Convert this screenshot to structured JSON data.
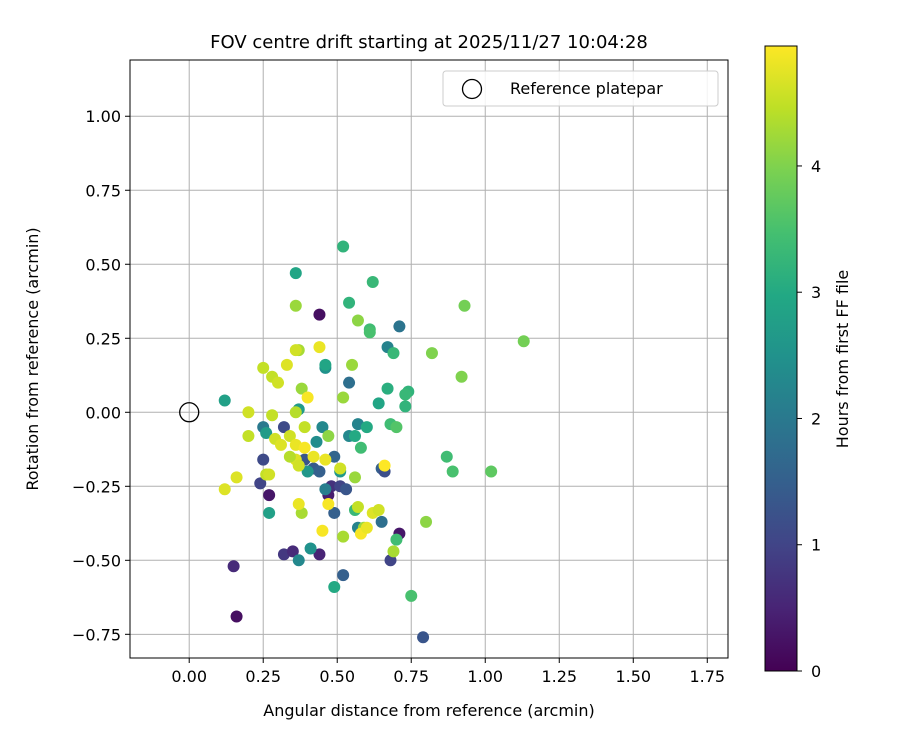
{
  "chart_data": {
    "type": "scatter",
    "title": "FOV centre drift starting at 2025/11/27 10:04:28",
    "xlabel": "Angular distance from reference (arcmin)",
    "ylabel": "Rotation from reference (arcmin)",
    "xlim": [
      -0.2,
      1.82
    ],
    "ylim": [
      -0.83,
      1.19
    ],
    "xticks": [
      0.0,
      0.25,
      0.5,
      0.75,
      1.0,
      1.25,
      1.5,
      1.75
    ],
    "xtick_labels": [
      "0.00",
      "0.25",
      "0.50",
      "0.75",
      "1.00",
      "1.25",
      "1.50",
      "1.75"
    ],
    "yticks": [
      -0.75,
      -0.5,
      -0.25,
      0.0,
      0.25,
      0.5,
      0.75,
      1.0
    ],
    "ytick_labels": [
      "−0.75",
      "−0.50",
      "−0.25",
      "0.00",
      "0.25",
      "0.50",
      "0.75",
      "1.00"
    ],
    "grid": true,
    "legend": {
      "placement": "top-right",
      "entries": [
        "Reference platepar"
      ]
    },
    "reference_point": {
      "x": 0.0,
      "y": 0.0
    },
    "colorbar": {
      "label": "Hours from first FF file",
      "colormap": "viridis",
      "range": [
        0,
        4.95
      ],
      "ticks": [
        0,
        1,
        2,
        3,
        4
      ],
      "tick_labels": [
        "0",
        "1",
        "2",
        "3",
        "4"
      ]
    },
    "points": [
      {
        "x": 0.44,
        "y": 0.33,
        "t": 0.2
      },
      {
        "x": 0.16,
        "y": -0.69,
        "t": 0.2
      },
      {
        "x": 0.15,
        "y": -0.52,
        "t": 0.6
      },
      {
        "x": 0.27,
        "y": -0.28,
        "t": 0.3
      },
      {
        "x": 0.24,
        "y": -0.24,
        "t": 1.0
      },
      {
        "x": 0.25,
        "y": -0.16,
        "t": 1.1
      },
      {
        "x": 0.32,
        "y": -0.48,
        "t": 0.8
      },
      {
        "x": 0.35,
        "y": -0.47,
        "t": 0.6
      },
      {
        "x": 0.44,
        "y": -0.48,
        "t": 0.5
      },
      {
        "x": 0.32,
        "y": -0.05,
        "t": 1.1
      },
      {
        "x": 0.48,
        "y": -0.25,
        "t": 0.7
      },
      {
        "x": 0.51,
        "y": -0.25,
        "t": 1.0
      },
      {
        "x": 0.53,
        "y": -0.26,
        "t": 1.3
      },
      {
        "x": 0.47,
        "y": -0.28,
        "t": 0.4
      },
      {
        "x": 0.42,
        "y": -0.19,
        "t": 1.4
      },
      {
        "x": 0.39,
        "y": -0.16,
        "t": 1.3
      },
      {
        "x": 0.44,
        "y": -0.2,
        "t": 1.5
      },
      {
        "x": 0.49,
        "y": -0.15,
        "t": 1.6
      },
      {
        "x": 0.71,
        "y": -0.41,
        "t": 0.3
      },
      {
        "x": 0.68,
        "y": -0.5,
        "t": 1.0
      },
      {
        "x": 0.79,
        "y": -0.76,
        "t": 1.3
      },
      {
        "x": 0.52,
        "y": -0.55,
        "t": 1.5
      },
      {
        "x": 0.49,
        "y": -0.34,
        "t": 1.5
      },
      {
        "x": 0.65,
        "y": -0.19,
        "t": 1.5
      },
      {
        "x": 0.66,
        "y": -0.2,
        "t": 1.2
      },
      {
        "x": 0.65,
        "y": -0.37,
        "t": 1.8
      },
      {
        "x": 0.54,
        "y": 0.1,
        "t": 1.8
      },
      {
        "x": 0.71,
        "y": 0.29,
        "t": 1.9
      },
      {
        "x": 0.67,
        "y": 0.22,
        "t": 2.2
      },
      {
        "x": 0.25,
        "y": -0.05,
        "t": 2.0
      },
      {
        "x": 0.37,
        "y": -0.5,
        "t": 2.3
      },
      {
        "x": 0.41,
        "y": -0.46,
        "t": 2.5
      },
      {
        "x": 0.46,
        "y": -0.26,
        "t": 2.1
      },
      {
        "x": 0.57,
        "y": -0.39,
        "t": 2.2
      },
      {
        "x": 0.43,
        "y": -0.1,
        "t": 2.4
      },
      {
        "x": 0.45,
        "y": -0.05,
        "t": 2.3
      },
      {
        "x": 0.54,
        "y": -0.08,
        "t": 2.3
      },
      {
        "x": 0.57,
        "y": -0.04,
        "t": 2.2
      },
      {
        "x": 0.46,
        "y": 0.15,
        "t": 2.5
      },
      {
        "x": 0.26,
        "y": -0.07,
        "t": 2.7
      },
      {
        "x": 0.27,
        "y": -0.34,
        "t": 2.8
      },
      {
        "x": 0.36,
        "y": 0.47,
        "t": 2.9
      },
      {
        "x": 0.12,
        "y": 0.04,
        "t": 2.8
      },
      {
        "x": 0.37,
        "y": 0.01,
        "t": 2.7
      },
      {
        "x": 0.46,
        "y": 0.16,
        "t": 2.9
      },
      {
        "x": 0.4,
        "y": -0.2,
        "t": 2.6
      },
      {
        "x": 0.51,
        "y": -0.2,
        "t": 2.6
      },
      {
        "x": 0.64,
        "y": 0.03,
        "t": 2.9
      },
      {
        "x": 0.6,
        "y": -0.05,
        "t": 3.0
      },
      {
        "x": 0.56,
        "y": -0.08,
        "t": 3.0
      },
      {
        "x": 0.49,
        "y": -0.59,
        "t": 3.0
      },
      {
        "x": 0.52,
        "y": 0.56,
        "t": 3.2
      },
      {
        "x": 0.54,
        "y": 0.37,
        "t": 3.2
      },
      {
        "x": 0.62,
        "y": 0.44,
        "t": 3.3
      },
      {
        "x": 0.61,
        "y": 0.28,
        "t": 3.4
      },
      {
        "x": 0.61,
        "y": 0.27,
        "t": 3.5
      },
      {
        "x": 0.69,
        "y": 0.2,
        "t": 3.3
      },
      {
        "x": 0.67,
        "y": 0.08,
        "t": 3.1
      },
      {
        "x": 0.74,
        "y": 0.07,
        "t": 3.2
      },
      {
        "x": 0.73,
        "y": 0.06,
        "t": 3.3
      },
      {
        "x": 0.73,
        "y": 0.02,
        "t": 3.2
      },
      {
        "x": 0.68,
        "y": -0.04,
        "t": 3.4
      },
      {
        "x": 0.7,
        "y": -0.05,
        "t": 3.6
      },
      {
        "x": 0.58,
        "y": -0.12,
        "t": 3.4
      },
      {
        "x": 0.87,
        "y": -0.15,
        "t": 3.4
      },
      {
        "x": 0.89,
        "y": -0.2,
        "t": 3.5
      },
      {
        "x": 1.02,
        "y": -0.2,
        "t": 3.7
      },
      {
        "x": 0.7,
        "y": -0.43,
        "t": 3.4
      },
      {
        "x": 0.75,
        "y": -0.62,
        "t": 3.5
      },
      {
        "x": 0.56,
        "y": -0.33,
        "t": 3.3
      },
      {
        "x": 0.8,
        "y": -0.37,
        "t": 4.1
      },
      {
        "x": 0.82,
        "y": 0.2,
        "t": 4.0
      },
      {
        "x": 0.93,
        "y": 0.36,
        "t": 3.9
      },
      {
        "x": 0.92,
        "y": 0.12,
        "t": 4.0
      },
      {
        "x": 1.13,
        "y": 0.24,
        "t": 3.9
      },
      {
        "x": 0.57,
        "y": 0.31,
        "t": 4.1
      },
      {
        "x": 0.36,
        "y": 0.36,
        "t": 4.2
      },
      {
        "x": 0.37,
        "y": 0.21,
        "t": 4.3
      },
      {
        "x": 0.55,
        "y": 0.16,
        "t": 4.2
      },
      {
        "x": 0.38,
        "y": 0.08,
        "t": 4.2
      },
      {
        "x": 0.52,
        "y": 0.05,
        "t": 4.2
      },
      {
        "x": 0.47,
        "y": -0.08,
        "t": 4.1
      },
      {
        "x": 0.56,
        "y": -0.22,
        "t": 4.2
      },
      {
        "x": 0.52,
        "y": -0.42,
        "t": 4.3
      },
      {
        "x": 0.69,
        "y": -0.47,
        "t": 4.3
      },
      {
        "x": 0.59,
        "y": -0.39,
        "t": 4.2
      },
      {
        "x": 0.38,
        "y": -0.34,
        "t": 4.3
      },
      {
        "x": 0.25,
        "y": 0.15,
        "t": 4.5
      },
      {
        "x": 0.28,
        "y": 0.12,
        "t": 4.5
      },
      {
        "x": 0.3,
        "y": 0.1,
        "t": 4.6
      },
      {
        "x": 0.33,
        "y": 0.16,
        "t": 4.7
      },
      {
        "x": 0.36,
        "y": 0.21,
        "t": 4.6
      },
      {
        "x": 0.44,
        "y": 0.22,
        "t": 4.8
      },
      {
        "x": 0.4,
        "y": 0.05,
        "t": 4.9
      },
      {
        "x": 0.36,
        "y": 0.0,
        "t": 4.4
      },
      {
        "x": 0.28,
        "y": -0.01,
        "t": 4.5
      },
      {
        "x": 0.2,
        "y": 0.0,
        "t": 4.6
      },
      {
        "x": 0.2,
        "y": -0.08,
        "t": 4.5
      },
      {
        "x": 0.29,
        "y": -0.09,
        "t": 4.6
      },
      {
        "x": 0.31,
        "y": -0.11,
        "t": 4.7
      },
      {
        "x": 0.34,
        "y": -0.08,
        "t": 4.6
      },
      {
        "x": 0.36,
        "y": -0.11,
        "t": 4.8
      },
      {
        "x": 0.39,
        "y": -0.12,
        "t": 4.9
      },
      {
        "x": 0.42,
        "y": -0.15,
        "t": 4.8
      },
      {
        "x": 0.36,
        "y": -0.16,
        "t": 4.7
      },
      {
        "x": 0.37,
        "y": -0.18,
        "t": 4.6
      },
      {
        "x": 0.34,
        "y": -0.15,
        "t": 4.4
      },
      {
        "x": 0.26,
        "y": -0.21,
        "t": 4.5
      },
      {
        "x": 0.27,
        "y": -0.21,
        "t": 4.6
      },
      {
        "x": 0.16,
        "y": -0.22,
        "t": 4.7
      },
      {
        "x": 0.12,
        "y": -0.26,
        "t": 4.7
      },
      {
        "x": 0.39,
        "y": -0.05,
        "t": 4.5
      },
      {
        "x": 0.46,
        "y": -0.16,
        "t": 4.8
      },
      {
        "x": 0.51,
        "y": -0.19,
        "t": 4.6
      },
      {
        "x": 0.47,
        "y": -0.31,
        "t": 4.9
      },
      {
        "x": 0.37,
        "y": -0.31,
        "t": 4.8
      },
      {
        "x": 0.45,
        "y": -0.4,
        "t": 4.9
      },
      {
        "x": 0.58,
        "y": -0.41,
        "t": 4.9
      },
      {
        "x": 0.6,
        "y": -0.39,
        "t": 4.8
      },
      {
        "x": 0.62,
        "y": -0.34,
        "t": 4.7
      },
      {
        "x": 0.64,
        "y": -0.33,
        "t": 4.6
      },
      {
        "x": 0.66,
        "y": -0.18,
        "t": 4.95
      },
      {
        "x": 0.57,
        "y": -0.32,
        "t": 4.5
      }
    ]
  }
}
